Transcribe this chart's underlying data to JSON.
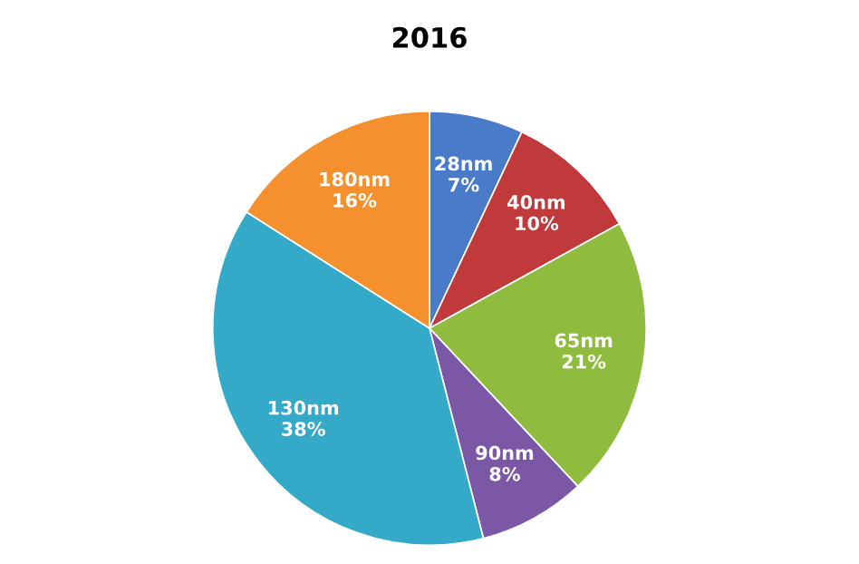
{
  "chart_data": {
    "type": "pie",
    "title": "2016",
    "categories": [
      "28nm",
      "40nm",
      "65nm",
      "90nm",
      "130nm",
      "180nm"
    ],
    "values": [
      7,
      10,
      21,
      8,
      38,
      16
    ],
    "value_labels": [
      "7%",
      "10%",
      "21%",
      "8%",
      "38%",
      "16%"
    ],
    "colors": [
      "#4a7bc8",
      "#c0393b",
      "#8fbc3f",
      "#7b58a6",
      "#35a9c8",
      "#f5902e"
    ],
    "legend": false
  }
}
